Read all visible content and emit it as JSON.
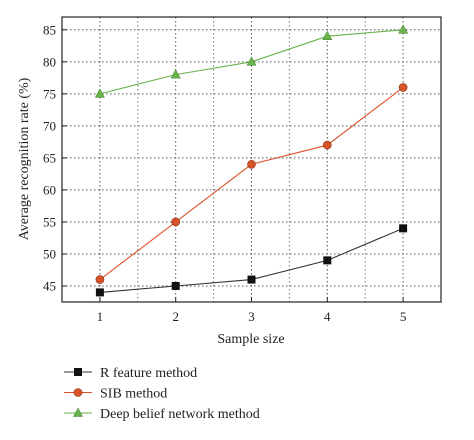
{
  "chart_data": {
    "type": "line",
    "title": "",
    "xlabel": "Sample size",
    "ylabel": "Average recognition rate (%)",
    "x": [
      1,
      2,
      3,
      4,
      5
    ],
    "xlim": [
      0.5,
      5.5
    ],
    "ylim": [
      42.5,
      87
    ],
    "xticks": [
      1,
      2,
      3,
      4,
      5
    ],
    "yticks": [
      45,
      50,
      55,
      60,
      65,
      70,
      75,
      80,
      85
    ],
    "grid": true,
    "legend_position": "bottom",
    "series": [
      {
        "name": "R feature method",
        "values": [
          44,
          45,
          46,
          49,
          54
        ],
        "color": "#333333",
        "marker_color": "#111111",
        "marker": "square"
      },
      {
        "name": "SIB method",
        "values": [
          46,
          55,
          64,
          67,
          76
        ],
        "color": "#d9532a",
        "marker_color": "#d9532a",
        "marker": "circle"
      },
      {
        "name": "Deep belief network method",
        "values": [
          75,
          78,
          80,
          84,
          85
        ],
        "color": "#6ab24b",
        "marker_color": "#6ab24b",
        "marker": "triangle"
      }
    ]
  }
}
